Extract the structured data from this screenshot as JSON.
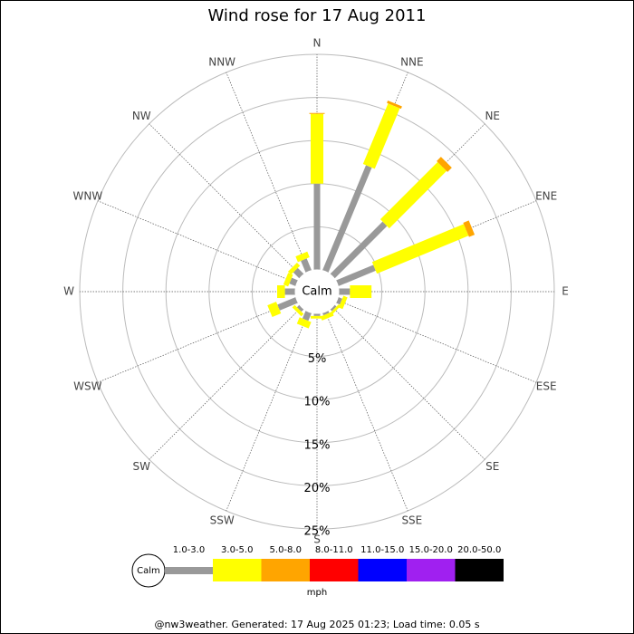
{
  "chart_data": {
    "type": "rose",
    "title": "Wind rose for 17 Aug 2011",
    "calm_label": "Calm",
    "unit_label": "mph",
    "footer": "@nw3weather. Generated: 17 Aug 2025 01:23; Load time: 0.05 s",
    "categories": [
      "N",
      "NNE",
      "NE",
      "ENE",
      "E",
      "ESE",
      "SE",
      "SSE",
      "S",
      "SSW",
      "SW",
      "WSW",
      "W",
      "WNW",
      "NW",
      "NNW"
    ],
    "rlim": [
      0,
      25
    ],
    "rticks": [
      {
        "value": 5,
        "label": "5%"
      },
      {
        "value": 10,
        "label": "10%"
      },
      {
        "value": 15,
        "label": "15%"
      },
      {
        "value": 20,
        "label": "20%"
      },
      {
        "value": 25,
        "label": "25%"
      }
    ],
    "series": [
      {
        "name": "1.0-3.0",
        "color": "#999999",
        "values": [
          10.0,
          13.2,
          8.6,
          4.7,
          1.3,
          0.5,
          0.3,
          0.3,
          0.3,
          1.0,
          0.4,
          2.3,
          1.2,
          0.8,
          1.0,
          1.5
        ]
      },
      {
        "name": "3.0-5.0",
        "color": "#ffff00",
        "values": [
          8.1,
          7.6,
          9.4,
          11.5,
          2.5,
          0.5,
          0.3,
          0.5,
          0.3,
          0.8,
          0.4,
          1.1,
          0.9,
          0.6,
          0.5,
          0.7
        ]
      },
      {
        "name": "5.0-8.0",
        "color": "#ffa500",
        "values": [
          0.1,
          0.3,
          0.7,
          0.7,
          0,
          0,
          0,
          0,
          0,
          0,
          0,
          0,
          0,
          0,
          0,
          0
        ]
      },
      {
        "name": "8.0-11.0",
        "color": "#ff0000",
        "values": [
          0,
          0,
          0,
          0,
          0,
          0,
          0,
          0,
          0,
          0,
          0,
          0,
          0,
          0,
          0,
          0
        ]
      },
      {
        "name": "11.0-15.0",
        "color": "#0000ff",
        "values": [
          0,
          0,
          0,
          0,
          0,
          0,
          0,
          0,
          0,
          0,
          0,
          0,
          0,
          0,
          0,
          0
        ]
      },
      {
        "name": "15.0-20.0",
        "color": "#a020f0",
        "values": [
          0,
          0,
          0,
          0,
          0,
          0,
          0,
          0,
          0,
          0,
          0,
          0,
          0,
          0,
          0,
          0
        ]
      },
      {
        "name": "20.0-50.0",
        "color": "#000000",
        "values": [
          0,
          0,
          0,
          0,
          0,
          0,
          0,
          0,
          0,
          0,
          0,
          0,
          0,
          0,
          0,
          0
        ]
      }
    ]
  }
}
